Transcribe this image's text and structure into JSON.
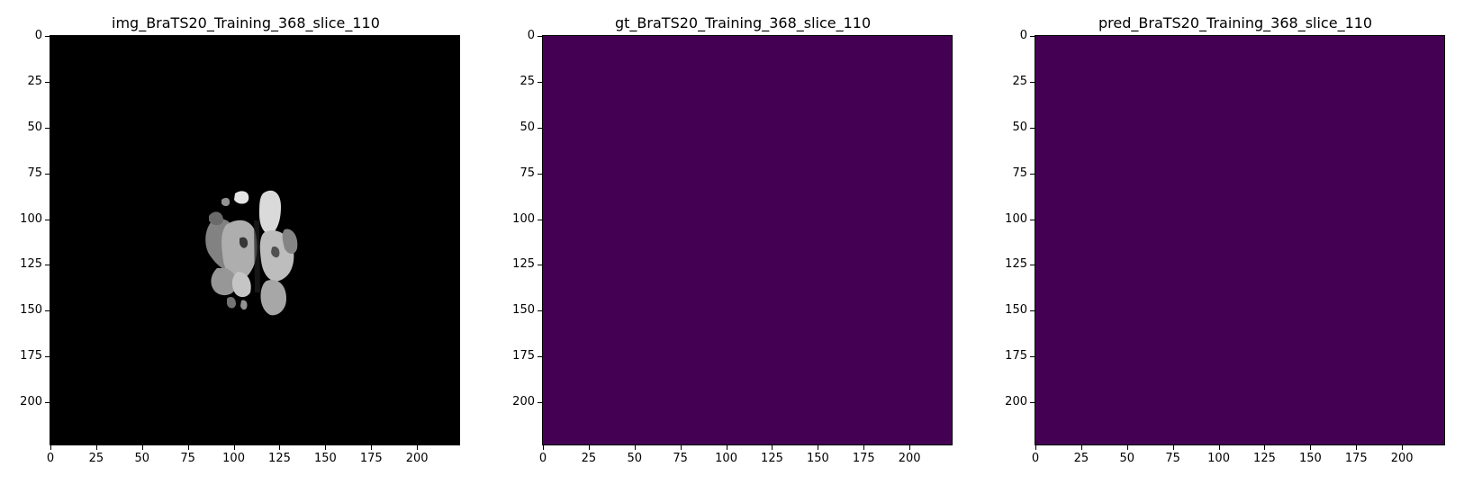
{
  "panels": [
    {
      "title": "img_BraTS20_Training_368_slice_110",
      "kind": "mri",
      "fill": "#000000"
    },
    {
      "title": "gt_BraTS20_Training_368_slice_110",
      "kind": "mask",
      "fill": "#440154"
    },
    {
      "title": "pred_BraTS20_Training_368_slice_110",
      "kind": "mask",
      "fill": "#440154"
    }
  ],
  "axis": {
    "x_ticks": [
      "0",
      "25",
      "50",
      "75",
      "100",
      "125",
      "150",
      "175",
      "200"
    ],
    "y_ticks": [
      "0",
      "25",
      "50",
      "75",
      "100",
      "125",
      "150",
      "175",
      "200"
    ],
    "x_values": [
      0,
      25,
      50,
      75,
      100,
      125,
      150,
      175,
      200
    ],
    "y_values": [
      0,
      25,
      50,
      75,
      100,
      125,
      150,
      175,
      200
    ],
    "range": [
      -0.5,
      223.5
    ]
  }
}
